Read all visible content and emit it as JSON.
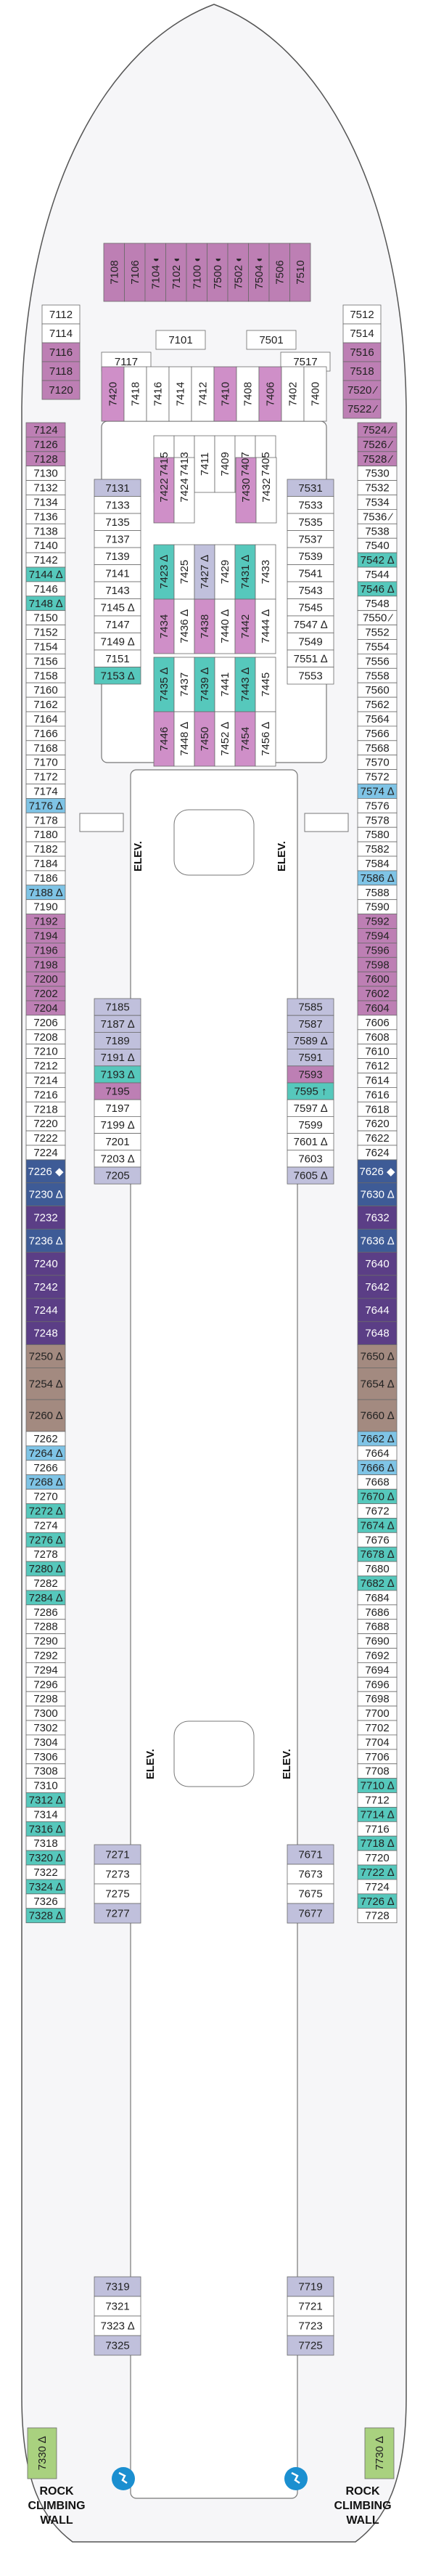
{
  "colors": {
    "hull": "#f6f6f8",
    "white": "#ffffff",
    "grey": "#e6e6e9",
    "lavender": "#c0c0dc",
    "plum": "#bd7fb4",
    "magenta": "#cf8fc8",
    "teal": "#56c8bc",
    "sky": "#7fc4e6",
    "navy": "#3e5b96",
    "purple": "#5b3e86",
    "taupe": "#a38a80",
    "lime": "#a9d17f"
  },
  "labels": {
    "elev": "ELEV.",
    "rock_climbing": [
      "ROCK",
      "CLIMBING",
      "WALL"
    ]
  },
  "port_cabins": [
    {
      "id": "7124",
      "c": "plum"
    },
    {
      "id": "7126",
      "c": "plum"
    },
    {
      "id": "7128",
      "c": "plum"
    },
    {
      "id": "7130",
      "c": "white"
    },
    {
      "id": "7132",
      "c": "white"
    },
    {
      "id": "7134",
      "c": "white"
    },
    {
      "id": "7136",
      "c": "white"
    },
    {
      "id": "7138",
      "c": "white"
    },
    {
      "id": "7140",
      "c": "white"
    },
    {
      "id": "7142",
      "c": "white"
    },
    {
      "id": "7144 ∆",
      "c": "teal"
    },
    {
      "id": "7146",
      "c": "white"
    },
    {
      "id": "7148 ∆",
      "c": "teal"
    },
    {
      "id": "7150",
      "c": "white"
    },
    {
      "id": "7152",
      "c": "white"
    },
    {
      "id": "7154",
      "c": "white"
    },
    {
      "id": "7156",
      "c": "white"
    },
    {
      "id": "7158",
      "c": "white"
    },
    {
      "id": "7160",
      "c": "white"
    },
    {
      "id": "7162",
      "c": "white"
    },
    {
      "id": "7164",
      "c": "white"
    },
    {
      "id": "7166",
      "c": "white"
    },
    {
      "id": "7168",
      "c": "white"
    },
    {
      "id": "7170",
      "c": "white"
    },
    {
      "id": "7172",
      "c": "white"
    },
    {
      "id": "7174",
      "c": "white"
    },
    {
      "id": "7176 ∆",
      "c": "sky"
    },
    {
      "id": "7178",
      "c": "white"
    },
    {
      "id": "7180",
      "c": "white"
    },
    {
      "id": "7182",
      "c": "white"
    },
    {
      "id": "7184",
      "c": "white"
    },
    {
      "id": "7186",
      "c": "white"
    },
    {
      "id": "7188 ∆",
      "c": "sky"
    },
    {
      "id": "7190",
      "c": "white"
    },
    {
      "id": "7192",
      "c": "plum"
    },
    {
      "id": "7194",
      "c": "plum"
    },
    {
      "id": "7196",
      "c": "plum"
    },
    {
      "id": "7198",
      "c": "plum"
    },
    {
      "id": "7200",
      "c": "plum"
    },
    {
      "id": "7202",
      "c": "plum"
    },
    {
      "id": "7204",
      "c": "plum"
    },
    {
      "id": "7206",
      "c": "white"
    },
    {
      "id": "7208",
      "c": "white"
    },
    {
      "id": "7210",
      "c": "white"
    },
    {
      "id": "7212",
      "c": "white"
    },
    {
      "id": "7214",
      "c": "white"
    },
    {
      "id": "7216",
      "c": "white"
    },
    {
      "id": "7218",
      "c": "white"
    },
    {
      "id": "7220",
      "c": "white"
    },
    {
      "id": "7222",
      "c": "white"
    },
    {
      "id": "7224",
      "c": "white"
    },
    {
      "id": "7226 ◆",
      "c": "navy",
      "h": 1.6
    },
    {
      "id": "7230 ∆",
      "c": "navy",
      "h": 1.6
    },
    {
      "id": "7232",
      "c": "purple",
      "h": 1.6
    },
    {
      "id": "7236 ∆",
      "c": "navy",
      "h": 1.6
    },
    {
      "id": "7240",
      "c": "purple",
      "h": 1.6
    },
    {
      "id": "7242",
      "c": "purple",
      "h": 1.6
    },
    {
      "id": "7244",
      "c": "purple",
      "h": 1.6
    },
    {
      "id": "7248",
      "c": "purple",
      "h": 1.6
    },
    {
      "id": "7250 ∆",
      "c": "taupe",
      "h": 1.6
    },
    {
      "id": "7254 ∆",
      "c": "taupe",
      "h": 2.2
    },
    {
      "id": "7260 ∆",
      "c": "taupe",
      "h": 2.2
    },
    {
      "id": "7262",
      "c": "white"
    },
    {
      "id": "7264 ∆",
      "c": "sky"
    },
    {
      "id": "7266",
      "c": "white"
    },
    {
      "id": "7268 ∆",
      "c": "sky"
    },
    {
      "id": "7270",
      "c": "white"
    },
    {
      "id": "7272 ∆",
      "c": "teal"
    },
    {
      "id": "7274",
      "c": "white"
    },
    {
      "id": "7276 ∆",
      "c": "teal"
    },
    {
      "id": "7278",
      "c": "white"
    },
    {
      "id": "7280 ∆",
      "c": "teal"
    },
    {
      "id": "7282",
      "c": "white"
    },
    {
      "id": "7284 ∆",
      "c": "teal"
    },
    {
      "id": "7286",
      "c": "white"
    },
    {
      "id": "7288",
      "c": "white"
    },
    {
      "id": "7290",
      "c": "white"
    },
    {
      "id": "7292",
      "c": "white"
    },
    {
      "id": "7294",
      "c": "white"
    },
    {
      "id": "7296",
      "c": "white"
    },
    {
      "id": "7298",
      "c": "white"
    },
    {
      "id": "7300",
      "c": "white"
    },
    {
      "id": "7302",
      "c": "white"
    },
    {
      "id": "7304",
      "c": "white"
    },
    {
      "id": "7306",
      "c": "white"
    },
    {
      "id": "7308",
      "c": "white"
    },
    {
      "id": "7310",
      "c": "white"
    },
    {
      "id": "7312 ∆",
      "c": "teal"
    },
    {
      "id": "7314",
      "c": "white"
    },
    {
      "id": "7316 ∆",
      "c": "teal"
    },
    {
      "id": "7318",
      "c": "white"
    },
    {
      "id": "7320 ∆",
      "c": "teal"
    },
    {
      "id": "7322",
      "c": "white"
    },
    {
      "id": "7324 ∆",
      "c": "teal"
    },
    {
      "id": "7326",
      "c": "white"
    },
    {
      "id": "7328 ∆",
      "c": "teal"
    }
  ],
  "stbd_cabins": [
    {
      "id": "7524 ⁄",
      "c": "plum"
    },
    {
      "id": "7526 ⁄",
      "c": "plum"
    },
    {
      "id": "7528 ⁄",
      "c": "plum"
    },
    {
      "id": "7530",
      "c": "white"
    },
    {
      "id": "7532",
      "c": "white"
    },
    {
      "id": "7534",
      "c": "white"
    },
    {
      "id": "7536 ⁄",
      "c": "white"
    },
    {
      "id": "7538",
      "c": "white"
    },
    {
      "id": "7540",
      "c": "white"
    },
    {
      "id": "7542 ∆",
      "c": "teal"
    },
    {
      "id": "7544",
      "c": "white"
    },
    {
      "id": "7546 ∆",
      "c": "teal"
    },
    {
      "id": "7548",
      "c": "white"
    },
    {
      "id": "7550 ⁄",
      "c": "white"
    },
    {
      "id": "7552",
      "c": "white"
    },
    {
      "id": "7554",
      "c": "white"
    },
    {
      "id": "7556",
      "c": "white"
    },
    {
      "id": "7558",
      "c": "white"
    },
    {
      "id": "7560",
      "c": "white"
    },
    {
      "id": "7562",
      "c": "white"
    },
    {
      "id": "7564",
      "c": "white"
    },
    {
      "id": "7566",
      "c": "white"
    },
    {
      "id": "7568",
      "c": "white"
    },
    {
      "id": "7570",
      "c": "white"
    },
    {
      "id": "7572",
      "c": "white"
    },
    {
      "id": "7574 ∆",
      "c": "sky"
    },
    {
      "id": "7576",
      "c": "white"
    },
    {
      "id": "7578",
      "c": "white"
    },
    {
      "id": "7580",
      "c": "white"
    },
    {
      "id": "7582",
      "c": "white"
    },
    {
      "id": "7584",
      "c": "white"
    },
    {
      "id": "7586 ∆",
      "c": "sky"
    },
    {
      "id": "7588",
      "c": "white"
    },
    {
      "id": "7590",
      "c": "white"
    },
    {
      "id": "7592",
      "c": "plum"
    },
    {
      "id": "7594",
      "c": "plum"
    },
    {
      "id": "7596",
      "c": "plum"
    },
    {
      "id": "7598",
      "c": "plum"
    },
    {
      "id": "7600",
      "c": "plum"
    },
    {
      "id": "7602",
      "c": "plum"
    },
    {
      "id": "7604",
      "c": "plum"
    },
    {
      "id": "7606",
      "c": "white"
    },
    {
      "id": "7608",
      "c": "white"
    },
    {
      "id": "7610",
      "c": "white"
    },
    {
      "id": "7612",
      "c": "white"
    },
    {
      "id": "7614",
      "c": "white"
    },
    {
      "id": "7616",
      "c": "white"
    },
    {
      "id": "7618",
      "c": "white"
    },
    {
      "id": "7620",
      "c": "white"
    },
    {
      "id": "7622",
      "c": "white"
    },
    {
      "id": "7624",
      "c": "white"
    },
    {
      "id": "7626 ◆",
      "c": "navy",
      "h": 1.6
    },
    {
      "id": "7630 ∆",
      "c": "navy",
      "h": 1.6
    },
    {
      "id": "7632",
      "c": "purple",
      "h": 1.6
    },
    {
      "id": "7636 ∆",
      "c": "navy",
      "h": 1.6
    },
    {
      "id": "7640",
      "c": "purple",
      "h": 1.6
    },
    {
      "id": "7642",
      "c": "purple",
      "h": 1.6
    },
    {
      "id": "7644",
      "c": "purple",
      "h": 1.6
    },
    {
      "id": "7648",
      "c": "purple",
      "h": 1.6
    },
    {
      "id": "7650 ∆",
      "c": "taupe",
      "h": 1.6
    },
    {
      "id": "7654 ∆",
      "c": "taupe",
      "h": 2.2
    },
    {
      "id": "7660 ∆",
      "c": "taupe",
      "h": 2.2
    },
    {
      "id": "7662 ∆",
      "c": "sky"
    },
    {
      "id": "7664",
      "c": "white"
    },
    {
      "id": "7666 ∆",
      "c": "sky"
    },
    {
      "id": "7668",
      "c": "white"
    },
    {
      "id": "7670 ∆",
      "c": "teal"
    },
    {
      "id": "7672",
      "c": "white"
    },
    {
      "id": "7674 ∆",
      "c": "teal"
    },
    {
      "id": "7676",
      "c": "white"
    },
    {
      "id": "7678 ∆",
      "c": "teal"
    },
    {
      "id": "7680",
      "c": "white"
    },
    {
      "id": "7682 ∆",
      "c": "teal"
    },
    {
      "id": "7684",
      "c": "white"
    },
    {
      "id": "7686",
      "c": "white"
    },
    {
      "id": "7688",
      "c": "white"
    },
    {
      "id": "7690",
      "c": "white"
    },
    {
      "id": "7692",
      "c": "white"
    },
    {
      "id": "7694",
      "c": "white"
    },
    {
      "id": "7696",
      "c": "white"
    },
    {
      "id": "7698",
      "c": "white"
    },
    {
      "id": "7700",
      "c": "white"
    },
    {
      "id": "7702",
      "c": "white"
    },
    {
      "id": "7704",
      "c": "white"
    },
    {
      "id": "7706",
      "c": "white"
    },
    {
      "id": "7708",
      "c": "white"
    },
    {
      "id": "7710 ∆",
      "c": "teal"
    },
    {
      "id": "7712",
      "c": "white"
    },
    {
      "id": "7714 ∆",
      "c": "teal"
    },
    {
      "id": "7716",
      "c": "white"
    },
    {
      "id": "7718 ∆",
      "c": "teal"
    },
    {
      "id": "7720",
      "c": "white"
    },
    {
      "id": "7722 ∆",
      "c": "teal"
    },
    {
      "id": "7724",
      "c": "white"
    },
    {
      "id": "7726 ∆",
      "c": "teal"
    },
    {
      "id": "7728",
      "c": "white"
    }
  ],
  "fwd_port_col": [
    {
      "id": "7112",
      "c": "white"
    },
    {
      "id": "7114",
      "c": "white"
    },
    {
      "id": "7116",
      "c": "plum"
    },
    {
      "id": "7118",
      "c": "plum"
    },
    {
      "id": "7120",
      "c": "plum"
    }
  ],
  "fwd_stbd_col": [
    {
      "id": "7512",
      "c": "white"
    },
    {
      "id": "7514",
      "c": "white"
    },
    {
      "id": "7516",
      "c": "plum"
    },
    {
      "id": "7518",
      "c": "plum"
    },
    {
      "id": "7520 ⁄",
      "c": "plum"
    },
    {
      "id": "7522 ⁄",
      "c": "plum"
    }
  ],
  "fwd_top": [
    {
      "id": "7108",
      "c": "plum"
    },
    {
      "id": "7106",
      "c": "plum"
    },
    {
      "id": "7104 ◐",
      "c": "plum"
    },
    {
      "id": "7102 ◐",
      "c": "plum"
    },
    {
      "id": "7100 ◐",
      "c": "plum"
    },
    {
      "id": "7500 ◐",
      "c": "plum"
    },
    {
      "id": "7502 ◐",
      "c": "plum"
    },
    {
      "id": "7504 ◐",
      "c": "plum"
    },
    {
      "id": "7506",
      "c": "plum"
    },
    {
      "id": "7510",
      "c": "plum"
    }
  ],
  "fwd_mid_labels": {
    "a": "7101",
    "b": "7501",
    "c": "7117",
    "d": "7517"
  },
  "fwd_vert": [
    {
      "id": "7420",
      "c": "magenta"
    },
    {
      "id": "7418",
      "c": "white"
    },
    {
      "id": "7416",
      "c": "white"
    },
    {
      "id": "7414",
      "c": "white"
    },
    {
      "id": "7412",
      "c": "white"
    },
    {
      "id": "7410",
      "c": "magenta"
    },
    {
      "id": "7408",
      "c": "white"
    },
    {
      "id": "7406",
      "c": "magenta"
    },
    {
      "id": "7402",
      "c": "white"
    },
    {
      "id": "7400",
      "c": "white"
    }
  ],
  "inner_port_upper": [
    {
      "id": "7131",
      "c": "lavender"
    },
    {
      "id": "7133",
      "c": "white"
    },
    {
      "id": "7135",
      "c": "white"
    },
    {
      "id": "7137",
      "c": "white"
    },
    {
      "id": "7139",
      "c": "white"
    },
    {
      "id": "7141",
      "c": "white"
    },
    {
      "id": "7143",
      "c": "white"
    },
    {
      "id": "7145 ∆",
      "c": "white"
    },
    {
      "id": "7147",
      "c": "white"
    },
    {
      "id": "7149 ∆",
      "c": "white"
    },
    {
      "id": "7151",
      "c": "white"
    },
    {
      "id": "7153 ∆",
      "c": "teal"
    }
  ],
  "inner_stbd_upper": [
    {
      "id": "7531",
      "c": "lavender"
    },
    {
      "id": "7533",
      "c": "white"
    },
    {
      "id": "7535",
      "c": "white"
    },
    {
      "id": "7537",
      "c": "white"
    },
    {
      "id": "7539",
      "c": "white"
    },
    {
      "id": "7541",
      "c": "white"
    },
    {
      "id": "7543",
      "c": "white"
    },
    {
      "id": "7545",
      "c": "white"
    },
    {
      "id": "7547 ∆",
      "c": "white"
    },
    {
      "id": "7549",
      "c": "white"
    },
    {
      "id": "7551 ∆",
      "c": "white"
    },
    {
      "id": "7553",
      "c": "white"
    }
  ],
  "inner_port_mid": [
    {
      "id": "7185",
      "c": "lavender"
    },
    {
      "id": "7187 ∆",
      "c": "lavender"
    },
    {
      "id": "7189",
      "c": "lavender"
    },
    {
      "id": "7191 ∆",
      "c": "lavender"
    },
    {
      "id": "7193 ∆",
      "c": "teal"
    },
    {
      "id": "7195",
      "c": "plum"
    },
    {
      "id": "7197",
      "c": "white"
    },
    {
      "id": "7199 ∆",
      "c": "white"
    },
    {
      "id": "7201",
      "c": "white"
    },
    {
      "id": "7203 ∆",
      "c": "white"
    },
    {
      "id": "7205",
      "c": "lavender"
    }
  ],
  "inner_stbd_mid": [
    {
      "id": "7585",
      "c": "lavender"
    },
    {
      "id": "7587",
      "c": "lavender"
    },
    {
      "id": "7589 ∆",
      "c": "lavender"
    },
    {
      "id": "7591",
      "c": "lavender"
    },
    {
      "id": "7593",
      "c": "plum"
    },
    {
      "id": "7595 ↑",
      "c": "teal"
    },
    {
      "id": "7597 ∆",
      "c": "white"
    },
    {
      "id": "7599",
      "c": "white"
    },
    {
      "id": "7601 ∆",
      "c": "white"
    },
    {
      "id": "7603",
      "c": "white"
    },
    {
      "id": "7605 ∆",
      "c": "lavender"
    }
  ],
  "inner_port_low": [
    {
      "id": "7271",
      "c": "lavender"
    },
    {
      "id": "7273",
      "c": "white"
    },
    {
      "id": "7275",
      "c": "white"
    },
    {
      "id": "7277",
      "c": "lavender"
    }
  ],
  "inner_stbd_low": [
    {
      "id": "7671",
      "c": "lavender"
    },
    {
      "id": "7673",
      "c": "white"
    },
    {
      "id": "7675",
      "c": "white"
    },
    {
      "id": "7677",
      "c": "lavender"
    }
  ],
  "inner_port_aft": [
    {
      "id": "7319",
      "c": "lavender"
    },
    {
      "id": "7321",
      "c": "white"
    },
    {
      "id": "7323 ∆",
      "c": "white"
    },
    {
      "id": "7325",
      "c": "lavender"
    }
  ],
  "inner_stbd_aft": [
    {
      "id": "7719",
      "c": "lavender"
    },
    {
      "id": "7721",
      "c": "white"
    },
    {
      "id": "7723",
      "c": "white"
    },
    {
      "id": "7725",
      "c": "lavender"
    }
  ],
  "block_top": [
    {
      "id": "7415",
      "c": "white"
    },
    {
      "id": "7413",
      "c": "white"
    },
    {
      "id": "7411",
      "c": "white"
    },
    {
      "id": "7409",
      "c": "white"
    },
    {
      "id": "7407",
      "c": "white"
    },
    {
      "id": "7405",
      "c": "white"
    }
  ],
  "block_r1": [
    {
      "id": "7422",
      "c": "magenta"
    },
    {
      "id": "7424",
      "c": "white"
    },
    {
      "id": "7430",
      "c": "magenta"
    },
    {
      "id": "7432",
      "c": "white"
    }
  ],
  "block_r2": [
    {
      "id": "7423 ∆",
      "c": "teal"
    },
    {
      "id": "7425",
      "c": "white"
    },
    {
      "id": "7427 ∆",
      "c": "lavender"
    },
    {
      "id": "7429",
      "c": "white"
    },
    {
      "id": "7431 ∆",
      "c": "teal"
    },
    {
      "id": "7433",
      "c": "white"
    }
  ],
  "block_r3": [
    {
      "id": "7434",
      "c": "magenta"
    },
    {
      "id": "7436 ∆",
      "c": "white"
    },
    {
      "id": "7438",
      "c": "magenta"
    },
    {
      "id": "7440 ∆",
      "c": "white"
    },
    {
      "id": "7442",
      "c": "magenta"
    },
    {
      "id": "7444 ∆",
      "c": "white"
    }
  ],
  "block_r4": [
    {
      "id": "7435 ∆",
      "c": "teal"
    },
    {
      "id": "7437",
      "c": "white"
    },
    {
      "id": "7439 ∆",
      "c": "teal"
    },
    {
      "id": "7441",
      "c": "white"
    },
    {
      "id": "7443 ∆",
      "c": "teal"
    },
    {
      "id": "7445",
      "c": "white"
    }
  ],
  "block_r5": [
    {
      "id": "7446",
      "c": "magenta"
    },
    {
      "id": "7448 ∆",
      "c": "white"
    },
    {
      "id": "7450",
      "c": "magenta"
    },
    {
      "id": "7452 ∆",
      "c": "white"
    },
    {
      "id": "7454",
      "c": "magenta"
    },
    {
      "id": "7456 ∆",
      "c": "white"
    }
  ],
  "aft": {
    "port": "7330 ∆",
    "stbd": "7730 ∆"
  }
}
